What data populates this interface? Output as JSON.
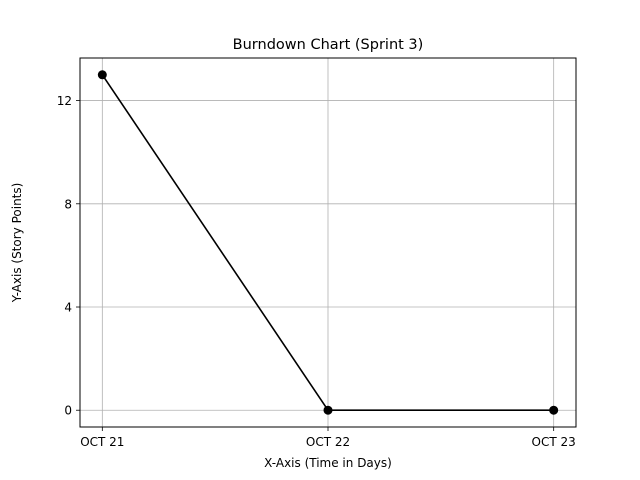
{
  "chart_data": {
    "type": "line",
    "title": "Burndown Chart (Sprint 3)",
    "xlabel": "X-Axis (Time in Days)",
    "ylabel": "Y-Axis (Story Points)",
    "x": [
      "OCT 21",
      "OCT 22",
      "OCT 23"
    ],
    "series": [
      {
        "values": [
          13,
          0,
          0
        ],
        "color": "#000000",
        "marker": "circle"
      }
    ],
    "yticks": [
      0,
      4,
      8,
      12
    ],
    "ylim": [
      -0.65,
      13.65
    ],
    "grid": true,
    "legend": "none"
  }
}
